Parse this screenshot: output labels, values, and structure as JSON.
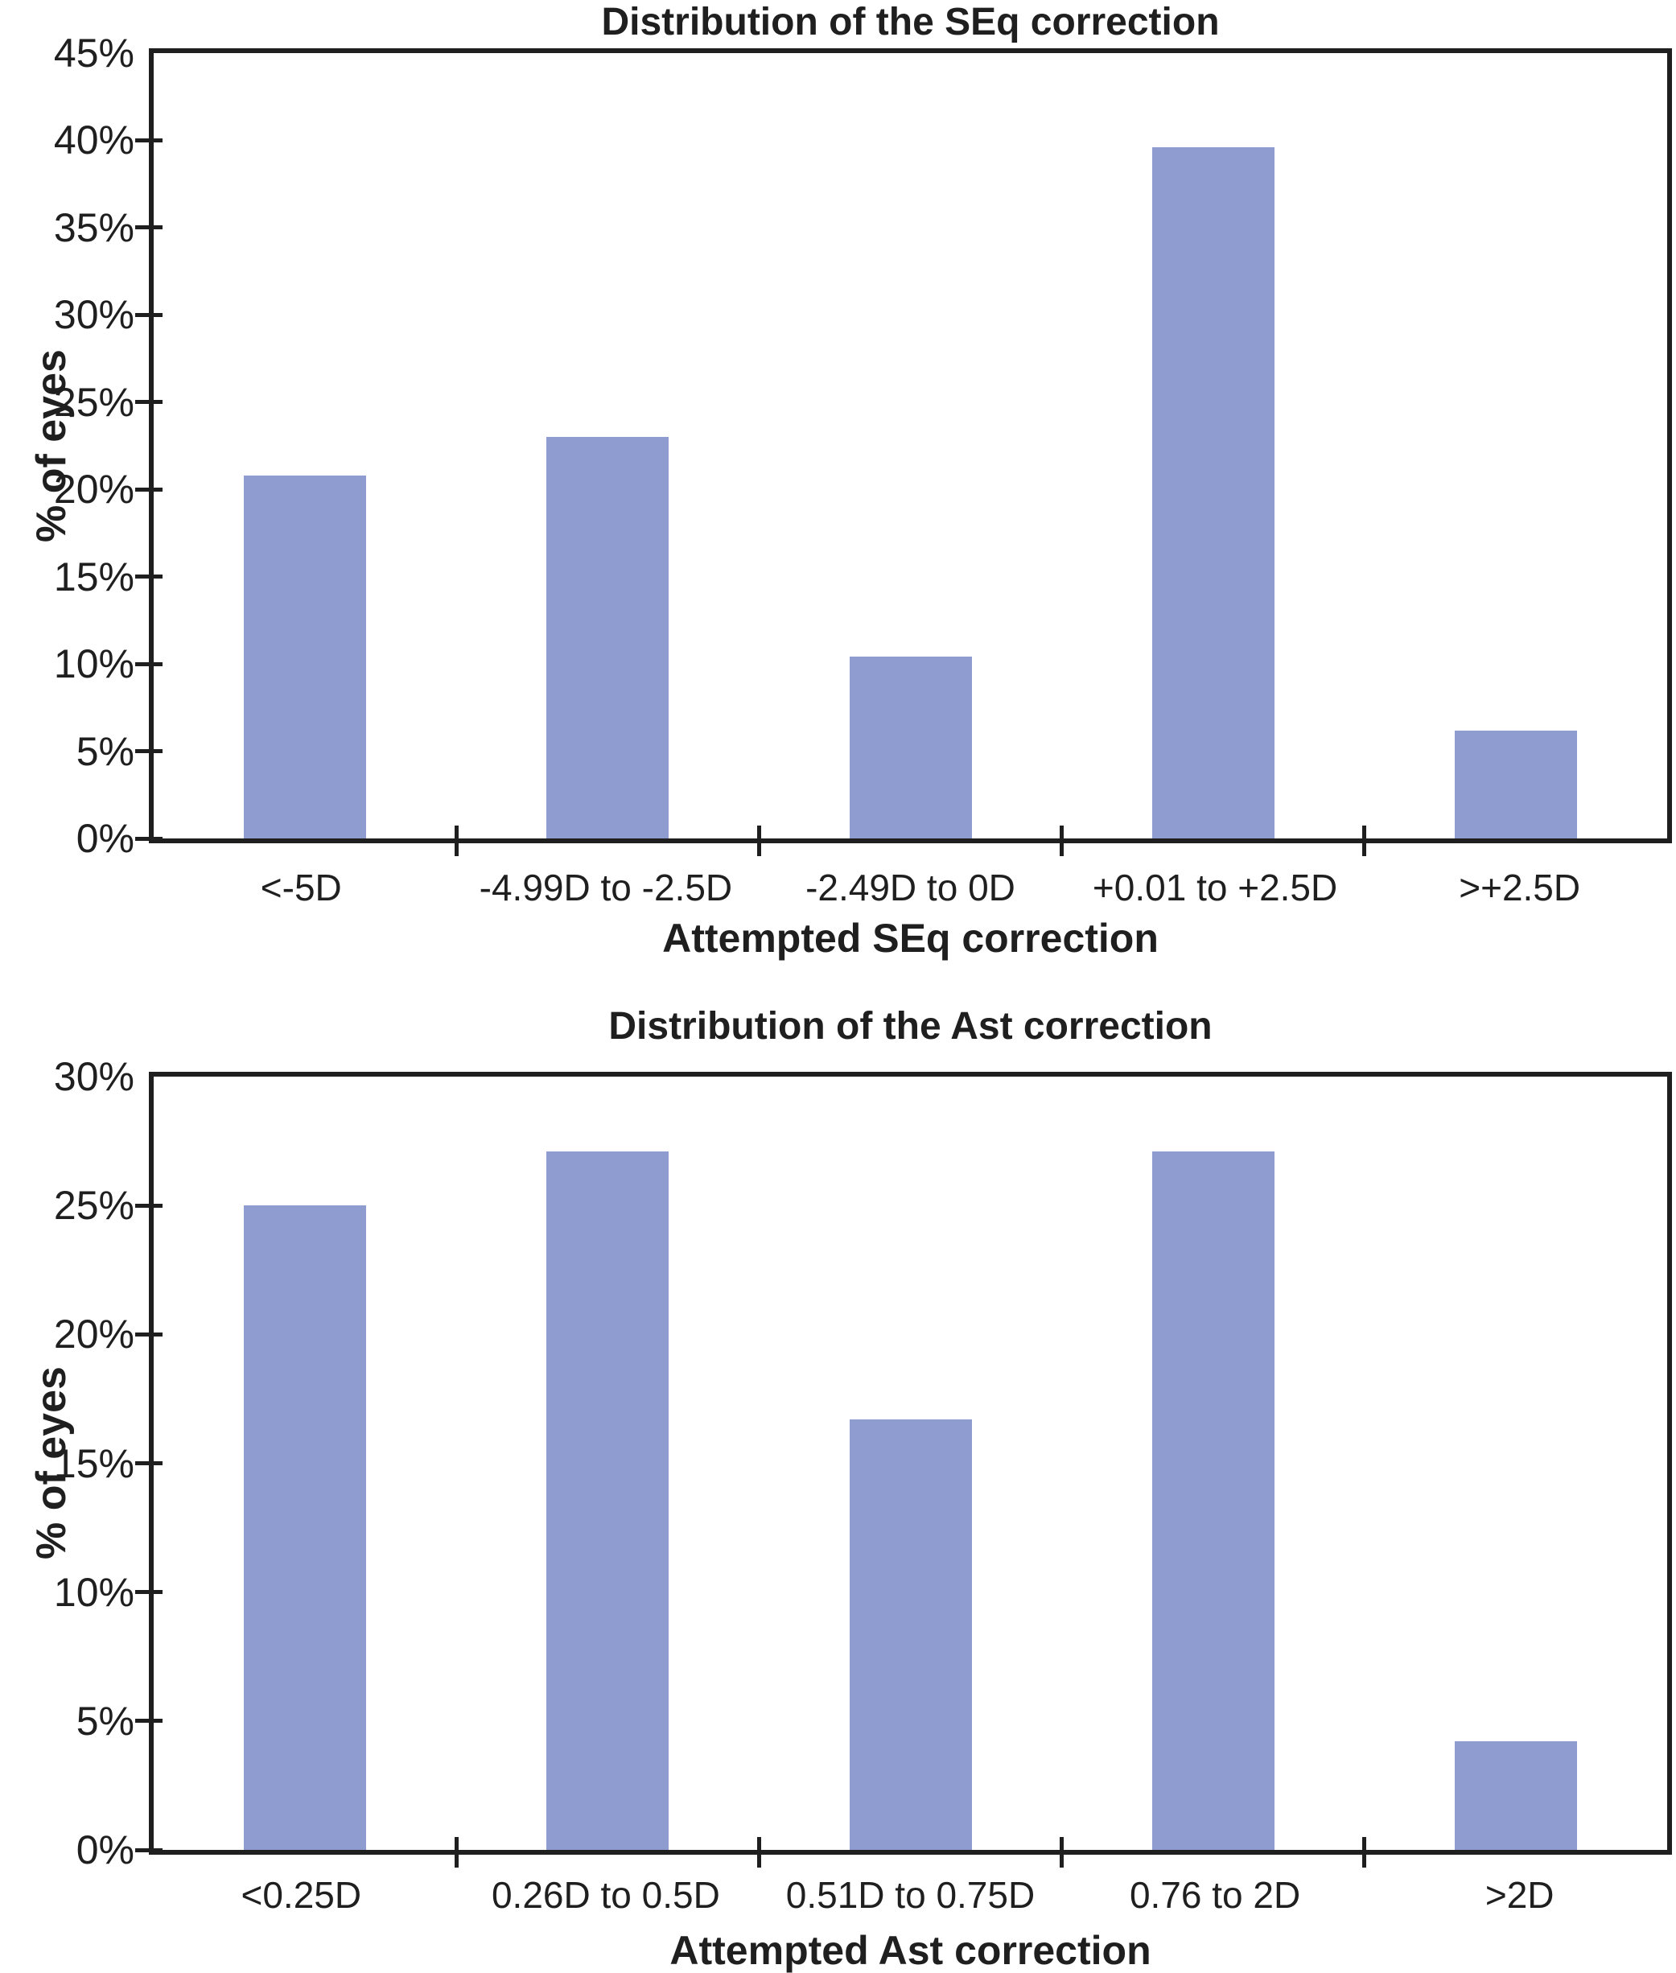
{
  "figure": {
    "bar_color": "#8f9cd0",
    "axis_color": "#1f1f1f",
    "background": "#ffffff"
  },
  "chart_data": [
    {
      "id": "seq",
      "type": "bar",
      "title": "Distribution of the SEq correction",
      "ylabel": "% of eyes",
      "xlabel": "Attempted SEq correction",
      "categories": [
        "<-5D",
        "-4.99D to -2.5D",
        "-2.49D to 0D",
        "+0.01 to +2.5D",
        ">+2.5D"
      ],
      "values": [
        20.8,
        23.0,
        10.4,
        39.6,
        6.2
      ],
      "ylim": [
        0,
        45
      ],
      "ytick_step": 5,
      "ytick_labels": [
        "0%",
        "5%",
        "10%",
        "15%",
        "20%",
        "25%",
        "30%",
        "35%",
        "40%",
        "45%"
      ],
      "grid": false,
      "legend": "none"
    },
    {
      "id": "ast",
      "type": "bar",
      "title": "Distribution of the Ast correction",
      "ylabel": "% of eyes",
      "xlabel": "Attempted Ast correction",
      "categories": [
        "<0.25D",
        "0.26D to 0.5D",
        "0.51D to 0.75D",
        "0.76 to 2D",
        ">2D"
      ],
      "values": [
        25.0,
        27.1,
        16.7,
        27.1,
        4.2
      ],
      "ylim": [
        0,
        30
      ],
      "ytick_step": 5,
      "ytick_labels": [
        "0%",
        "5%",
        "10%",
        "15%",
        "20%",
        "25%",
        "30%"
      ],
      "grid": false,
      "legend": "none"
    }
  ]
}
